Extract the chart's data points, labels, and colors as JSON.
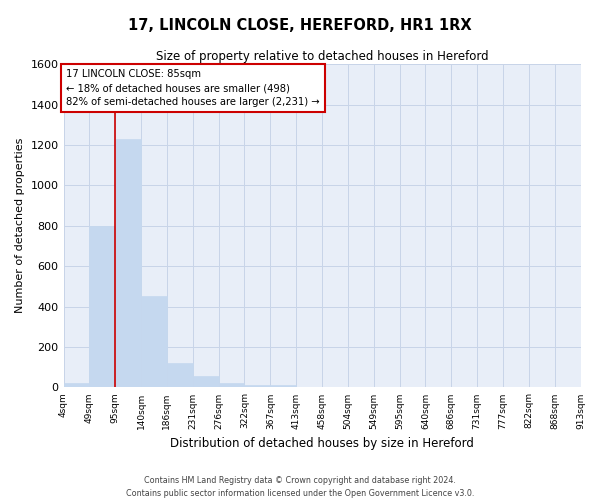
{
  "title_line1": "17, LINCOLN CLOSE, HEREFORD, HR1 1RX",
  "title_line2": "Size of property relative to detached houses in Hereford",
  "xlabel": "Distribution of detached houses by size in Hereford",
  "ylabel": "Number of detached properties",
  "bar_values": [
    20,
    800,
    1230,
    455,
    120,
    55,
    20,
    10,
    10,
    0,
    0,
    0,
    0,
    0,
    0,
    0,
    0,
    0,
    0,
    0
  ],
  "categories": [
    "4sqm",
    "49sqm",
    "95sqm",
    "140sqm",
    "186sqm",
    "231sqm",
    "276sqm",
    "322sqm",
    "367sqm",
    "413sqm",
    "458sqm",
    "504sqm",
    "549sqm",
    "595sqm",
    "640sqm",
    "686sqm",
    "731sqm",
    "777sqm",
    "822sqm",
    "868sqm",
    "913sqm"
  ],
  "bar_color": "#c5d8ef",
  "bar_edge_color": "#c5d8ef",
  "red_line_x": 2,
  "ylim": [
    0,
    1600
  ],
  "yticks": [
    0,
    200,
    400,
    600,
    800,
    1000,
    1200,
    1400,
    1600
  ],
  "annotation_text": "17 LINCOLN CLOSE: 85sqm\n← 18% of detached houses are smaller (498)\n82% of semi-detached houses are larger (2,231) →",
  "annotation_box_facecolor": "#ffffff",
  "annotation_box_edgecolor": "#cc0000",
  "grid_color": "#c8d4e8",
  "background_color": "#e8eef8",
  "footer_line1": "Contains HM Land Registry data © Crown copyright and database right 2024.",
  "footer_line2": "Contains public sector information licensed under the Open Government Licence v3.0."
}
